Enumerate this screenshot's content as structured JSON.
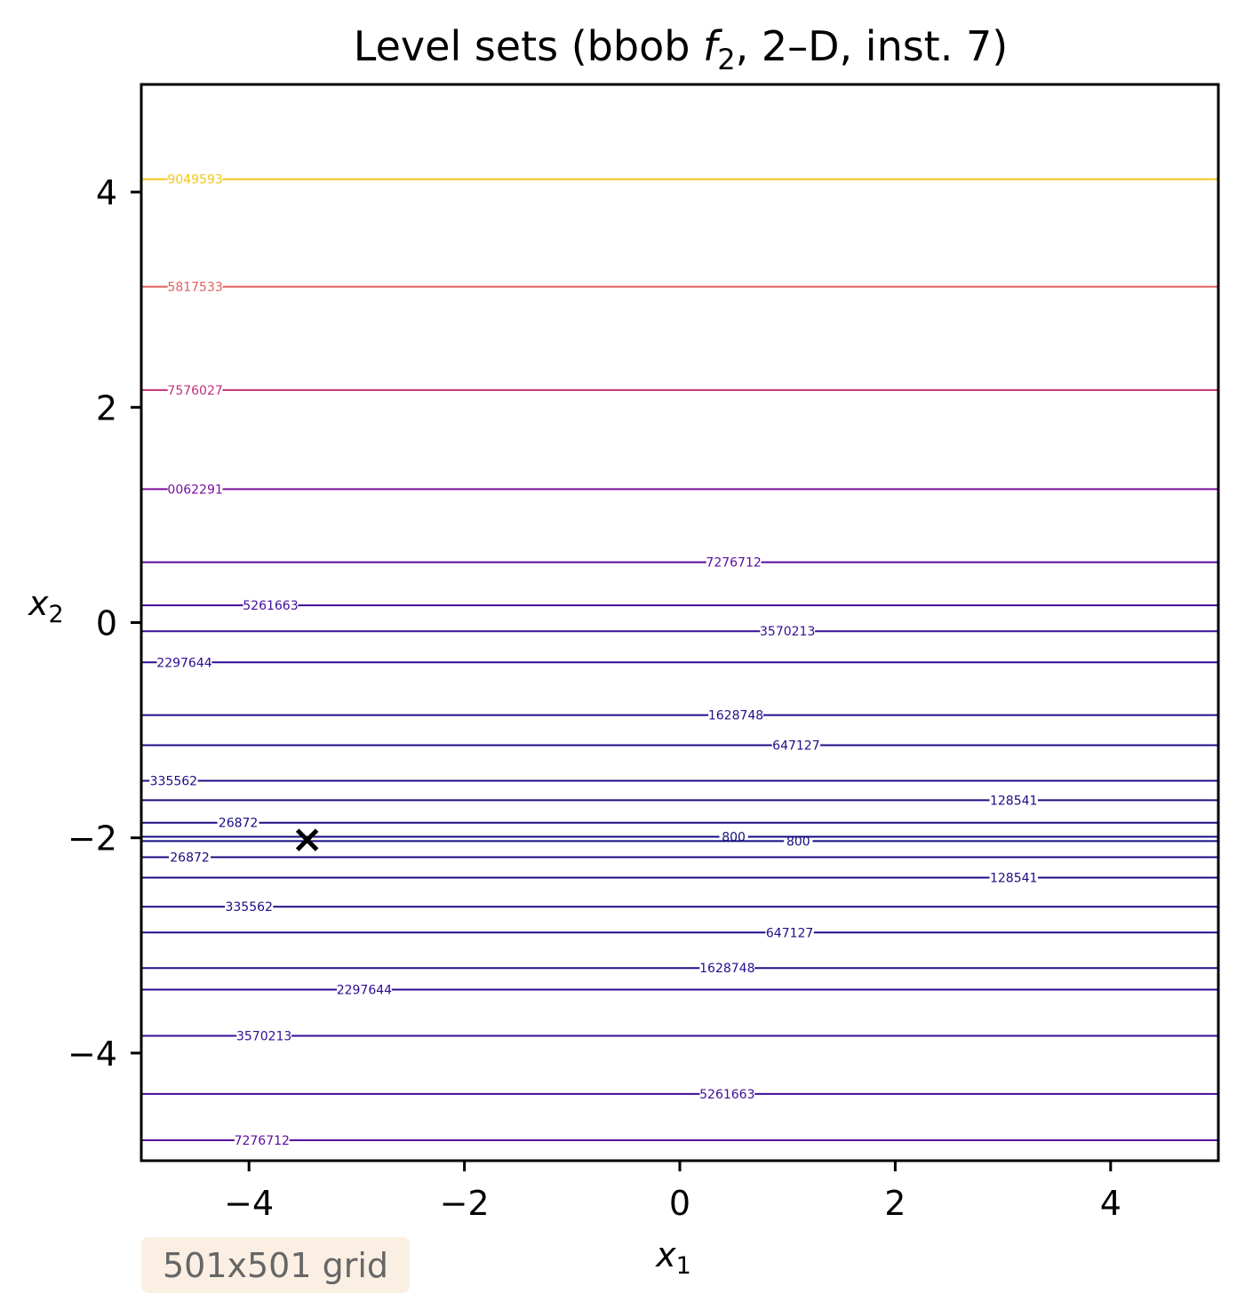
{
  "chart_data": {
    "type": "contour",
    "title_main": "Level sets (bbob ",
    "title_f": "f",
    "title_sub": "2",
    "title_rest": ", 2–D, inst. 7)",
    "xlabel_var": "x",
    "xlabel_sub": "1",
    "ylabel_var": "x",
    "ylabel_sub": "2",
    "xlim": [
      -5,
      5
    ],
    "ylim": [
      -5,
      5
    ],
    "xticks": [
      -4,
      -2,
      0,
      2,
      4
    ],
    "yticks": [
      -4,
      -2,
      0,
      2,
      4
    ],
    "xtick_labels": [
      "−4",
      "−2",
      "0",
      "2",
      "4"
    ],
    "ytick_labels": [
      "−4",
      "−2",
      "0",
      "2",
      "4"
    ],
    "grid": false,
    "marker": {
      "x": -3.46,
      "y": -2.02,
      "symbol": "x",
      "color": "#000000"
    },
    "contours": [
      {
        "y": 4.12,
        "label": "9049593",
        "label_x": -4.5,
        "color": "#f5c518"
      },
      {
        "y": 3.12,
        "label": "5817533",
        "label_x": -4.5,
        "color": "#e06060"
      },
      {
        "y": 2.16,
        "label": "7576027",
        "label_x": -4.5,
        "color": "#c0307a"
      },
      {
        "y": 1.24,
        "label": "0062291",
        "label_x": -4.5,
        "color": "#7a0fa0"
      },
      {
        "y": 0.56,
        "label": "7276712",
        "label_x": 0.5,
        "color": "#5a0ba0"
      },
      {
        "y": 0.16,
        "label": "5261663",
        "label_x": -3.8,
        "color": "#420b9a"
      },
      {
        "y": -0.08,
        "label": "3570213",
        "label_x": 1.0,
        "color": "#360c96"
      },
      {
        "y": -0.37,
        "label": "2297644",
        "label_x": -4.6,
        "color": "#2c0c92"
      },
      {
        "y": -0.86,
        "label": "1628748",
        "label_x": 0.52,
        "color": "#260c8c"
      },
      {
        "y": -1.14,
        "label": "647127",
        "label_x": 1.08,
        "color": "#200c88"
      },
      {
        "y": -1.47,
        "label": "335562",
        "label_x": -4.7,
        "color": "#1c0c86"
      },
      {
        "y": -1.65,
        "label": "128541",
        "label_x": 3.1,
        "color": "#1a0c84"
      },
      {
        "y": -1.86,
        "label": "26872",
        "label_x": -4.1,
        "color": "#180c82"
      },
      {
        "y": -1.99,
        "label": "800",
        "label_x": 0.5,
        "color": "#160c80"
      },
      {
        "y": -2.03,
        "label": "800",
        "label_x": 1.1,
        "color": "#160c80"
      },
      {
        "y": -2.18,
        "label": "26872",
        "label_x": -4.55,
        "color": "#180c82"
      },
      {
        "y": -2.37,
        "label": "128541",
        "label_x": 3.1,
        "color": "#1a0c84"
      },
      {
        "y": -2.64,
        "label": "335562",
        "label_x": -4.0,
        "color": "#1c0c86"
      },
      {
        "y": -2.88,
        "label": "647127",
        "label_x": 1.02,
        "color": "#200c88"
      },
      {
        "y": -3.21,
        "label": "1628748",
        "label_x": 0.44,
        "color": "#260c8c"
      },
      {
        "y": -3.41,
        "label": "2297644",
        "label_x": -2.93,
        "color": "#2c0c92"
      },
      {
        "y": -3.84,
        "label": "3570213",
        "label_x": -3.86,
        "color": "#360c96"
      },
      {
        "y": -4.38,
        "label": "5261663",
        "label_x": 0.44,
        "color": "#420b9a"
      },
      {
        "y": -4.81,
        "label": "7276712",
        "label_x": -3.88,
        "color": "#5a0ba0"
      }
    ]
  },
  "annotation": {
    "grid_note": "501x501 grid"
  }
}
